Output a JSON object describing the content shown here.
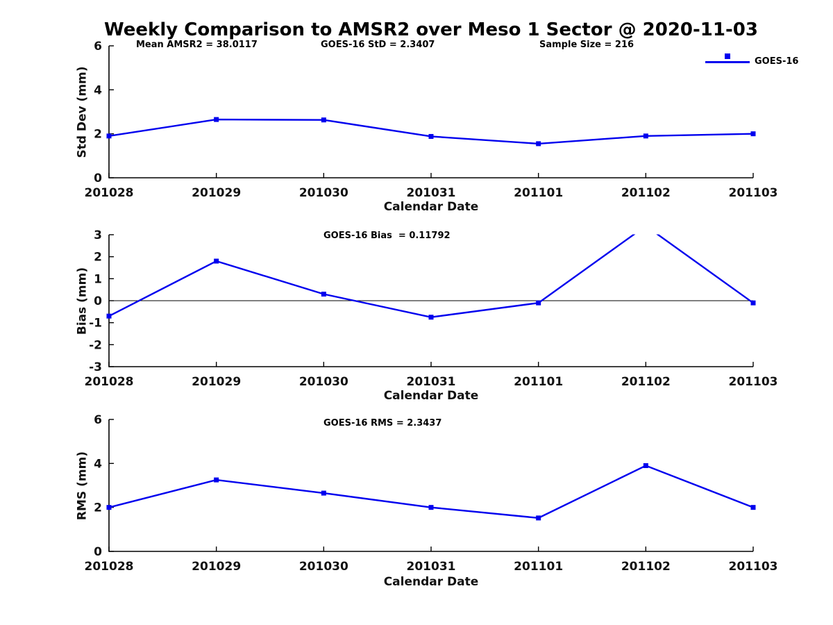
{
  "figure_title": "Weekly Comparison to AMSR2 over Meso 1 Sector @ 2020-11-03",
  "accent_color": "#0000EE",
  "chart_data": [
    {
      "type": "line",
      "name": "std-dev",
      "ylabel": "Std Dev (mm)",
      "xlabel": "Calendar Date",
      "categories": [
        "201028",
        "201029",
        "201030",
        "201031",
        "201101",
        "201102",
        "201103"
      ],
      "series": [
        {
          "name": "GOES-16",
          "color": "#0000EE",
          "marker": "square",
          "values": [
            1.9,
            2.65,
            2.63,
            1.88,
            1.55,
            1.9,
            2.0
          ]
        }
      ],
      "ylim": [
        0,
        6
      ],
      "yticks": [
        0,
        2,
        4,
        6
      ],
      "grid": false,
      "zero_line": false,
      "annotations": [
        "Mean AMSR2 = 38.0117",
        "GOES-16 StD = 2.3407",
        "Sample Size = 216"
      ],
      "legend": {
        "label": "GOES-16",
        "position": "northeast"
      }
    },
    {
      "type": "line",
      "name": "bias",
      "ylabel": "Bias (mm)",
      "xlabel": "Calendar Date",
      "categories": [
        "201028",
        "201029",
        "201030",
        "201031",
        "201101",
        "201102",
        "201103"
      ],
      "series": [
        {
          "name": "GOES-16",
          "color": "#0000EE",
          "marker": "square",
          "values": [
            -0.7,
            1.8,
            0.3,
            -0.75,
            -0.1,
            3.4,
            -0.1
          ]
        }
      ],
      "ylim": [
        -3,
        3
      ],
      "yticks": [
        -3,
        -2,
        -1,
        0,
        1,
        2,
        3
      ],
      "grid": false,
      "zero_line": true,
      "annotations": [
        "GOES-16 Bias  = 0.11792"
      ],
      "legend": null
    },
    {
      "type": "line",
      "name": "rms",
      "ylabel": "RMS (mm)",
      "xlabel": "Calendar Date",
      "categories": [
        "201028",
        "201029",
        "201030",
        "201031",
        "201101",
        "201102",
        "201103"
      ],
      "series": [
        {
          "name": "GOES-16",
          "color": "#0000EE",
          "marker": "square",
          "values": [
            2.0,
            3.25,
            2.65,
            2.0,
            1.52,
            3.9,
            2.0
          ]
        }
      ],
      "ylim": [
        0,
        6
      ],
      "yticks": [
        0,
        2,
        4,
        6
      ],
      "grid": false,
      "zero_line": false,
      "annotations": [
        "GOES-16 RMS = 2.3437"
      ],
      "legend": null
    }
  ]
}
